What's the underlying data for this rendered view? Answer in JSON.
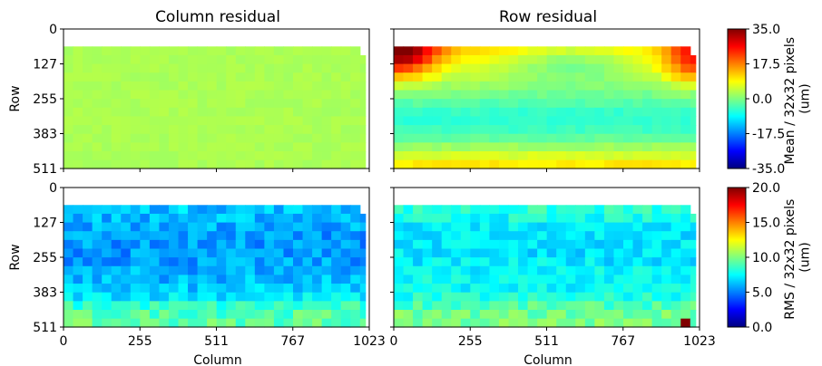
{
  "chart_data": {
    "type": "heatmap",
    "panel_titles": [
      "Column residual",
      "Row residual"
    ],
    "xlabel": "Column",
    "ylabel": "Row",
    "x_ticks": [
      "0",
      "255",
      "511",
      "767",
      "1023"
    ],
    "y_ticks": [
      "0",
      "127",
      "255",
      "383",
      "511"
    ],
    "xlim": [
      0,
      1023
    ],
    "ylim": [
      511,
      0
    ],
    "grid": "none",
    "cell_size": "32x32 pixels",
    "colormap": "jet",
    "panels": [
      {
        "name": "column-residual-mean",
        "row": "top",
        "col": "left",
        "metric": "Mean",
        "value_range": [
          -35.0,
          35.0
        ],
        "description": "nearly uniform at approximately 3 um",
        "approx_value": 3.0,
        "coverage_columns": [
          0,
          1010
        ],
        "coverage_rows": [
          64,
          511
        ]
      },
      {
        "name": "row-residual-mean",
        "row": "top",
        "col": "right",
        "metric": "Mean",
        "value_range": [
          -35.0,
          35.0
        ],
        "approx_profile_by_row": {
          "rows": [
            64,
            128,
            192,
            256,
            320,
            384,
            448,
            511
          ],
          "values": [
            12,
            8,
            3,
            -2,
            -6,
            -4,
            4,
            12
          ]
        },
        "hotspots": [
          {
            "columns": [
              0,
              130
            ],
            "rows": [
              64,
              180
            ],
            "max": 35.0
          },
          {
            "columns": [
              900,
              1010
            ],
            "rows": [
              64,
              200
            ],
            "max": 22.0
          }
        ],
        "coverage_columns": [
          0,
          1010
        ],
        "coverage_rows": [
          64,
          511
        ]
      },
      {
        "name": "column-residual-rms",
        "row": "bottom",
        "col": "left",
        "metric": "RMS",
        "value_range": [
          0.0,
          20.0
        ],
        "approx_profile_by_row": {
          "rows": [
            64,
            128,
            192,
            256,
            320,
            384,
            448,
            511
          ],
          "values": [
            6.5,
            6.0,
            5.5,
            5.5,
            6.0,
            6.5,
            9.0,
            9.5
          ]
        },
        "coverage_columns": [
          0,
          1010
        ],
        "coverage_rows": [
          64,
          511
        ]
      },
      {
        "name": "row-residual-rms",
        "row": "bottom",
        "col": "right",
        "metric": "RMS",
        "value_range": [
          0.0,
          20.0
        ],
        "approx_profile_by_row": {
          "rows": [
            64,
            128,
            192,
            256,
            320,
            384,
            448,
            511
          ],
          "values": [
            8.5,
            7.5,
            7.0,
            7.0,
            7.5,
            7.5,
            9.5,
            10.0
          ]
        },
        "hotspots": [
          {
            "columns": [
              960,
              992
            ],
            "rows": [
              480,
              511
            ],
            "max": 20.0
          }
        ],
        "coverage_columns": [
          0,
          1010
        ],
        "coverage_rows": [
          64,
          511
        ]
      }
    ],
    "colorbars": [
      {
        "label": "Mean / 32x32 pixels (um)",
        "min": -35.0,
        "max": 35.0,
        "ticks": [
          "35.0",
          "17.5",
          "0.0",
          "-17.5",
          "-35.0"
        ]
      },
      {
        "label": "RMS / 32x32 pixels (um)",
        "min": 0.0,
        "max": 20.0,
        "ticks": [
          "20.0",
          "15.0",
          "10.0",
          "5.0",
          "0.0"
        ]
      }
    ]
  }
}
